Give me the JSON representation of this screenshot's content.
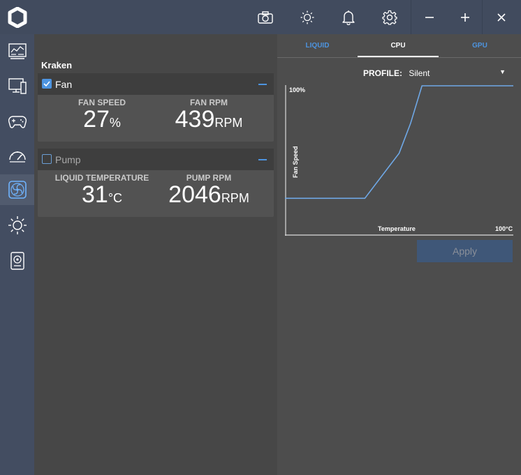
{
  "titlebar": {
    "icons": [
      "app-logo-icon",
      "camera-icon",
      "sun-icon",
      "bell-icon",
      "gear-icon",
      "minimize-icon",
      "plus-icon",
      "close-icon"
    ]
  },
  "sidebar": {
    "items": [
      {
        "name": "dashboard-icon"
      },
      {
        "name": "pc-monitor-icon"
      },
      {
        "name": "gamepad-icon"
      },
      {
        "name": "gauge-icon"
      },
      {
        "name": "fan-icon",
        "active": true
      },
      {
        "name": "lighting-icon"
      },
      {
        "name": "audio-device-icon"
      }
    ]
  },
  "device": {
    "title": "Kraken",
    "fan": {
      "label": "Fan",
      "checked": true,
      "speed_label": "FAN SPEED",
      "speed_value": "27",
      "speed_unit": "%",
      "rpm_label": "FAN RPM",
      "rpm_value": "439",
      "rpm_unit": "RPM"
    },
    "pump": {
      "label": "Pump",
      "checked": false,
      "temp_label": "LIQUID TEMPERATURE",
      "temp_value": "31",
      "temp_unit": "°C",
      "rpm_label": "PUMP RPM",
      "rpm_value": "2046",
      "rpm_unit": "RPM"
    }
  },
  "tabs": {
    "liquid": "LIQUID",
    "cpu": "CPU",
    "gpu": "GPU",
    "active": "CPU"
  },
  "profile": {
    "label": "PROFILE:",
    "value": "Silent"
  },
  "chart_data": {
    "type": "line",
    "title": "",
    "xlabel": "Temperature",
    "ylabel": "Fan Speed",
    "x_max_label": "100°C",
    "y_max_label": "100%",
    "xlim": [
      0,
      100
    ],
    "ylim": [
      0,
      100
    ],
    "series": [
      {
        "x": [
          0,
          35,
          50,
          55,
          60,
          100
        ],
        "y": [
          25,
          25,
          55,
          75,
          100,
          100
        ]
      }
    ],
    "color": "#6fa8e6"
  },
  "apply": {
    "label": "Apply"
  }
}
